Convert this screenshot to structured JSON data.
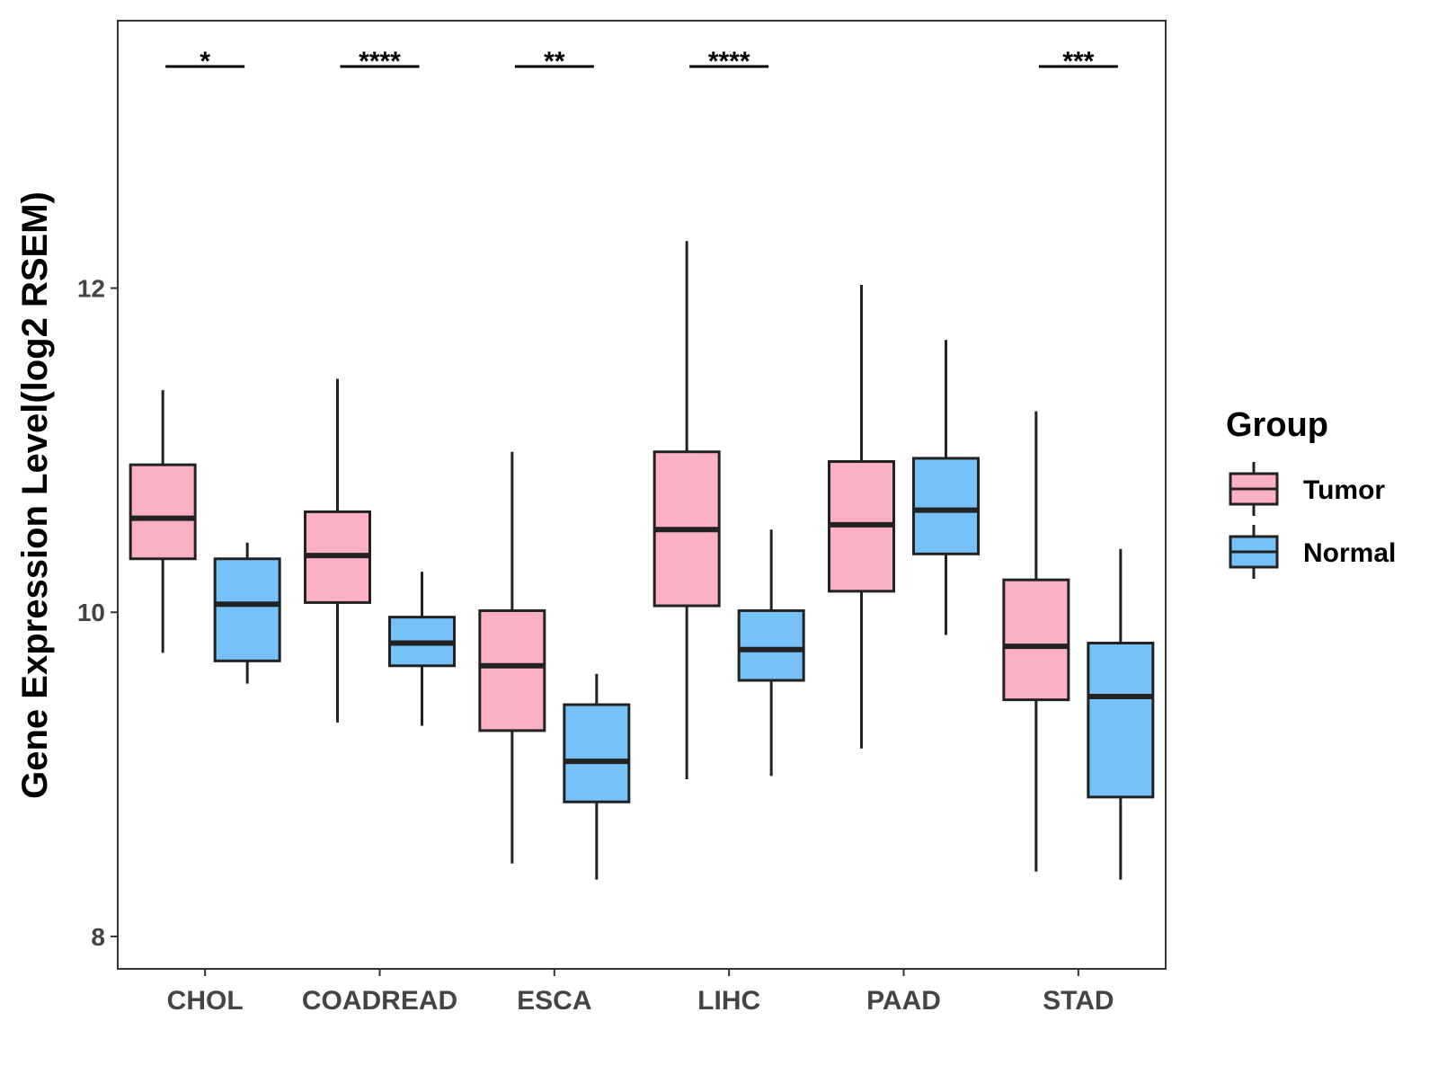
{
  "chart_data": {
    "type": "boxplot",
    "title": "",
    "xlabel": "",
    "ylabel": "Gene Expression Level(log2 RSEM)",
    "ylim": [
      7.8,
      13.65
    ],
    "yticks": [
      8,
      10,
      12
    ],
    "grid": false,
    "legend": {
      "title": "Group",
      "position": "right",
      "entries": [
        {
          "name": "Tumor",
          "color": "#FBB1C3"
        },
        {
          "name": "Normal",
          "color": "#76C1F7"
        }
      ]
    },
    "categories": [
      "CHOL",
      "COADREAD",
      "ESCA",
      "LIHC",
      "PAAD",
      "STAD"
    ],
    "series": [
      {
        "name": "Tumor",
        "color": "#FBB1C3",
        "boxes": [
          {
            "min": 9.75,
            "q1": 10.33,
            "median": 10.58,
            "q3": 10.91,
            "max": 11.37
          },
          {
            "min": 9.32,
            "q1": 10.06,
            "median": 10.35,
            "q3": 10.62,
            "max": 11.44
          },
          {
            "min": 8.45,
            "q1": 9.27,
            "median": 9.67,
            "q3": 10.01,
            "max": 10.99
          },
          {
            "min": 8.97,
            "q1": 10.04,
            "median": 10.51,
            "q3": 10.99,
            "max": 12.29
          },
          {
            "min": 9.16,
            "q1": 10.13,
            "median": 10.54,
            "q3": 10.93,
            "max": 12.02
          },
          {
            "min": 8.4,
            "q1": 9.46,
            "median": 9.79,
            "q3": 10.2,
            "max": 11.24
          }
        ]
      },
      {
        "name": "Normal",
        "color": "#76C1F7",
        "boxes": [
          {
            "min": 9.56,
            "q1": 9.7,
            "median": 10.05,
            "q3": 10.33,
            "max": 10.43
          },
          {
            "min": 9.3,
            "q1": 9.67,
            "median": 9.81,
            "q3": 9.97,
            "max": 10.25
          },
          {
            "min": 8.35,
            "q1": 8.83,
            "median": 9.08,
            "q3": 9.43,
            "max": 9.62
          },
          {
            "min": 8.99,
            "q1": 9.58,
            "median": 9.77,
            "q3": 10.01,
            "max": 10.51
          },
          {
            "min": 9.86,
            "q1": 10.36,
            "median": 10.63,
            "q3": 10.95,
            "max": 11.68
          },
          {
            "min": 8.35,
            "q1": 8.86,
            "median": 9.48,
            "q3": 9.81,
            "max": 10.39
          }
        ]
      }
    ],
    "significance": [
      {
        "category": "CHOL",
        "label": "*"
      },
      {
        "category": "COADREAD",
        "label": "****"
      },
      {
        "category": "ESCA",
        "label": "**"
      },
      {
        "category": "LIHC",
        "label": "****"
      },
      {
        "category": "PAAD",
        "label": ""
      },
      {
        "category": "STAD",
        "label": "***"
      }
    ]
  }
}
